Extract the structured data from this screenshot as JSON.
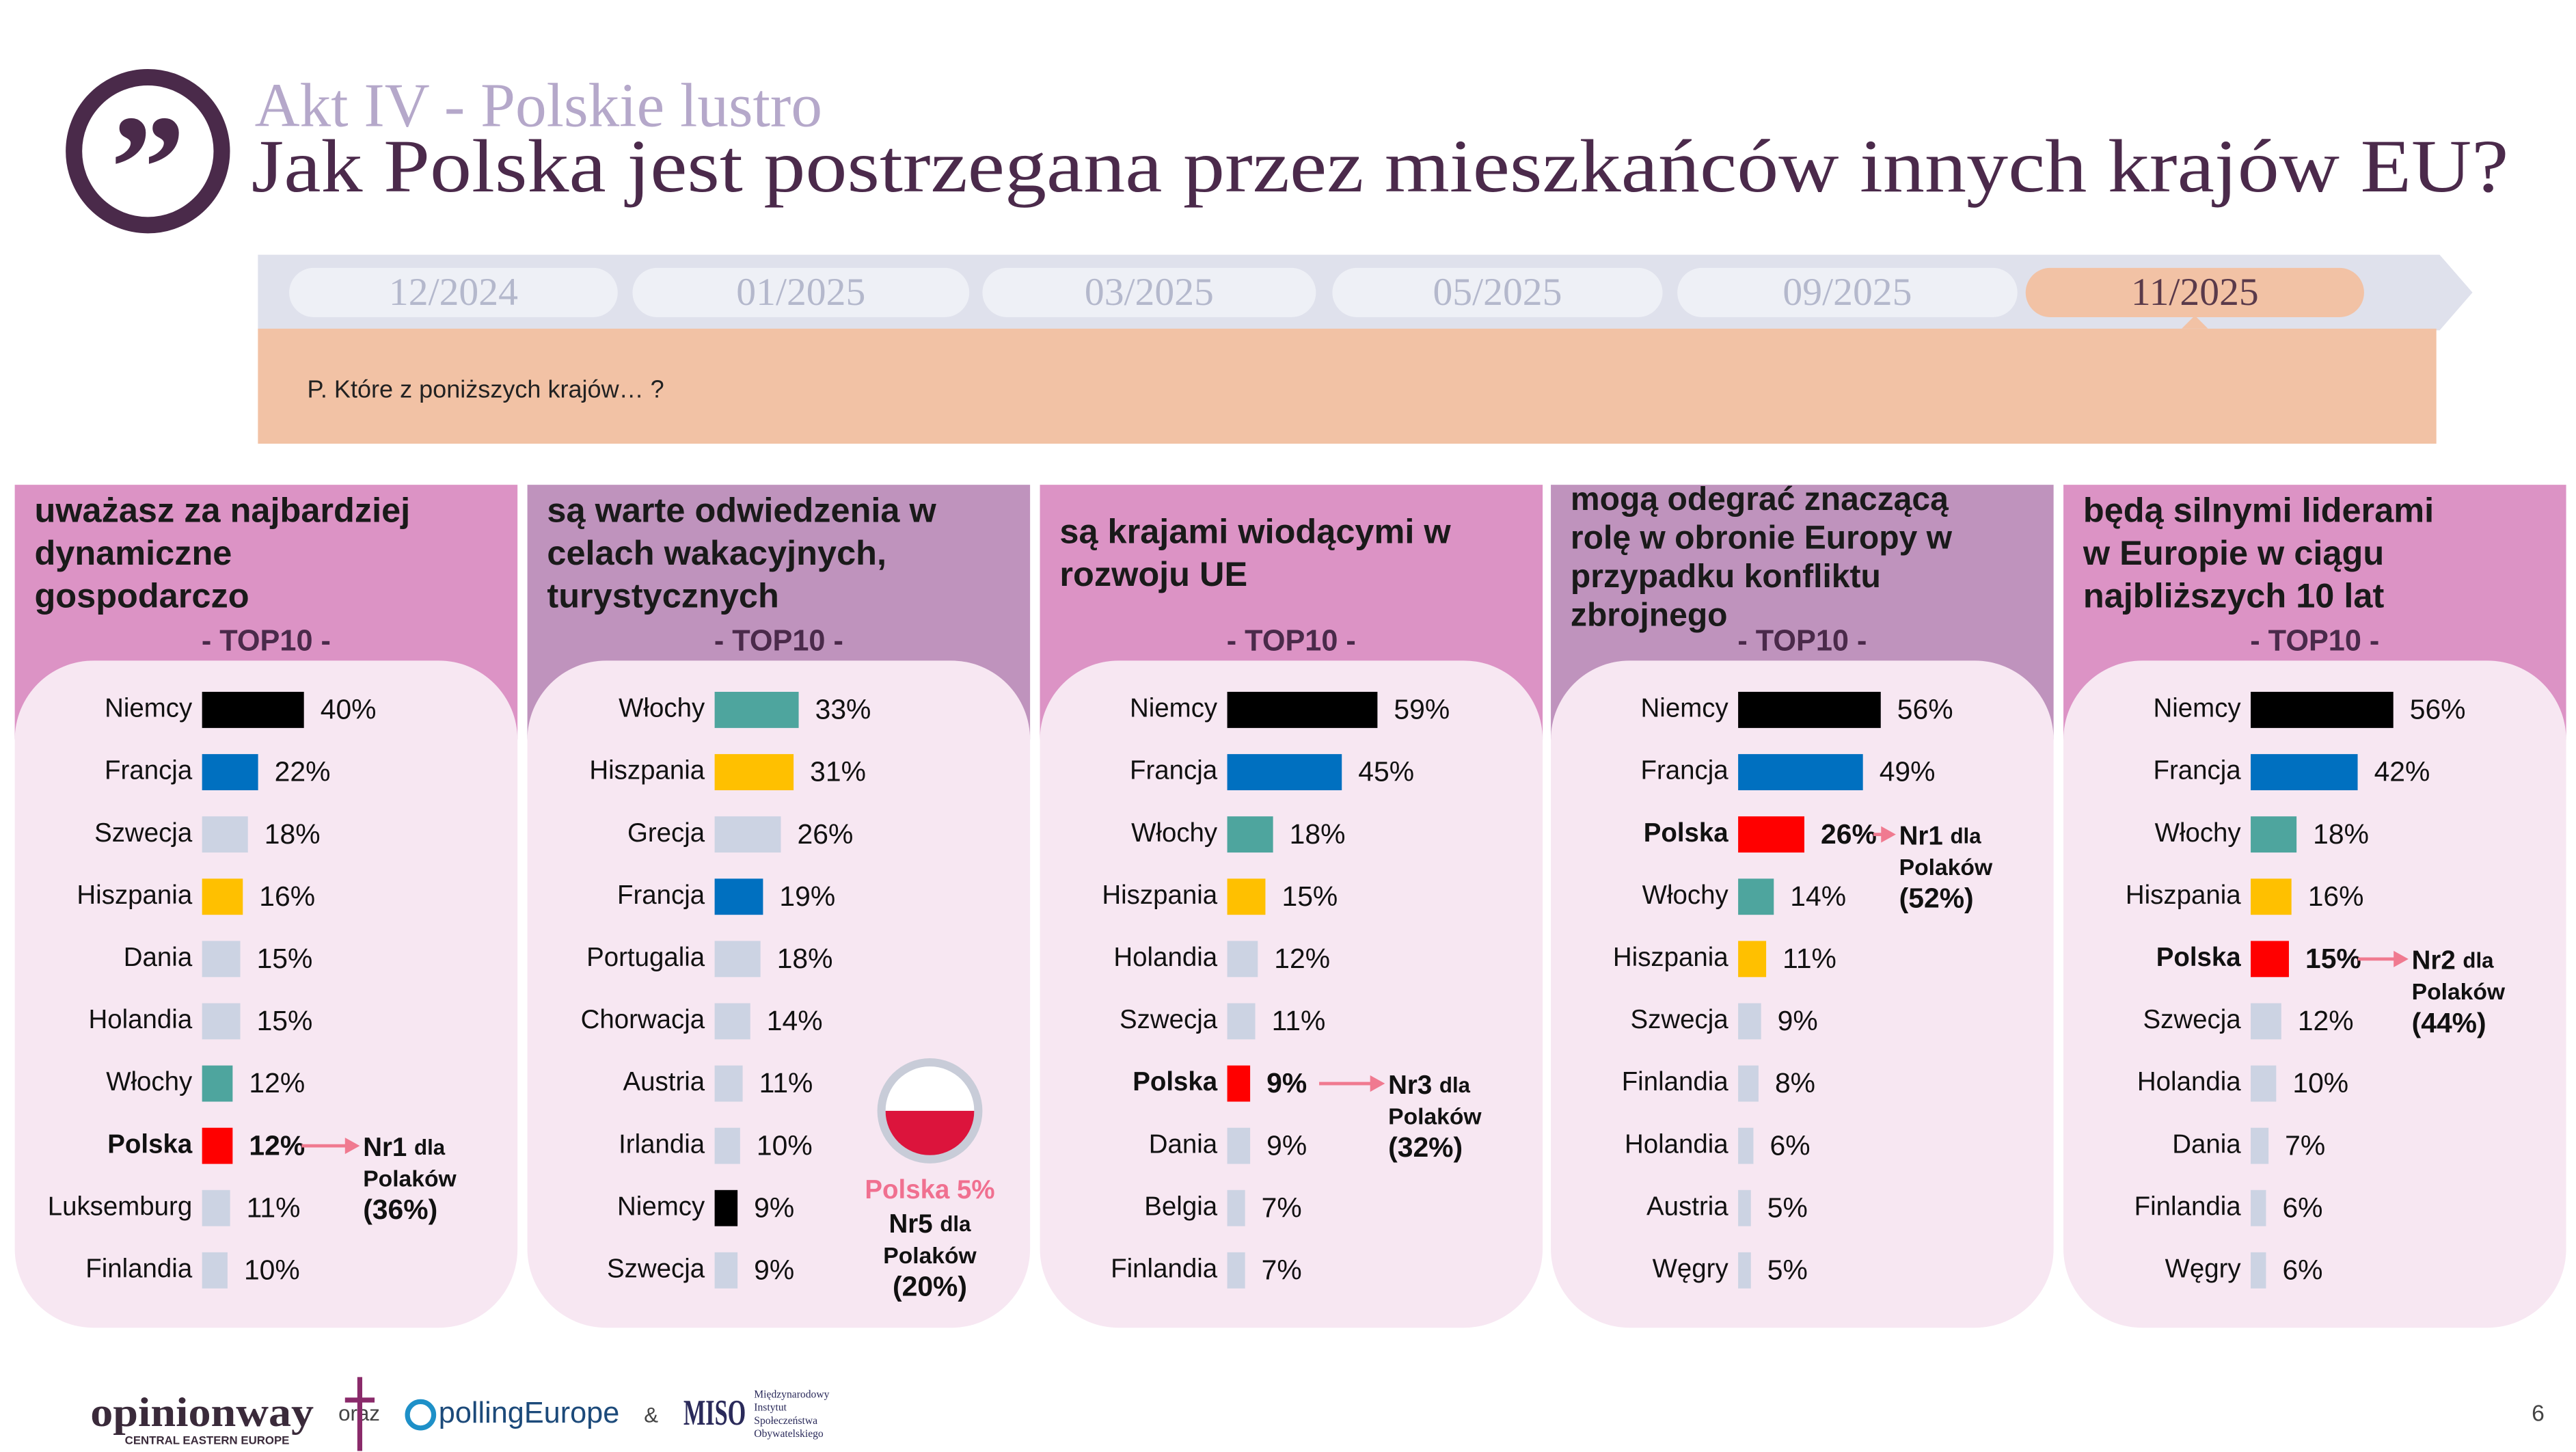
{
  "header": {
    "kicker": "Akt IV - Polskie lustro",
    "title": "Jak Polska jest postrzegana przez mieszkańców innych krajów EU?"
  },
  "timeline": {
    "steps": [
      "12/2024",
      "01/2025",
      "03/2025",
      "05/2025",
      "09/2025",
      "11/2025"
    ],
    "active": "11/2025",
    "question": "P. Które z poniższych krajów… ?"
  },
  "chart_data": [
    {
      "type": "bar",
      "orientation": "horizontal",
      "title": [
        "uważasz za najbardziej",
        "dynamiczne",
        "gospodarczo"
      ],
      "subtitle": "- TOP10 -",
      "header_color": "#dc93c5",
      "categories": [
        "Niemcy",
        "Francja",
        "Szwecja",
        "Hiszpania",
        "Dania",
        "Holandia",
        "Włochy",
        "Polska",
        "Luksemburg",
        "Finlandia"
      ],
      "values": [
        40,
        22,
        18,
        16,
        15,
        15,
        12,
        12,
        11,
        10
      ],
      "value_labels": [
        "40%",
        "22%",
        "18%",
        "16%",
        "15%",
        "15%",
        "12%",
        "12%",
        "11%",
        "10%"
      ],
      "colors": [
        "#000000",
        "#0070c0",
        "#ccd3e3",
        "#ffc000",
        "#ccd3e3",
        "#ccd3e3",
        "#4ea59e",
        "#ff0000",
        "#ccd3e3",
        "#ccd3e3"
      ],
      "annotation": [
        "Nr1",
        "dla",
        "Polaków",
        "(36%)"
      ]
    },
    {
      "type": "bar",
      "orientation": "horizontal",
      "title": [
        "są warte odwiedzenia w",
        "celach wakacyjnych,",
        "turystycznych"
      ],
      "subtitle": "- TOP10 -",
      "header_color": "#bf93bd",
      "categories": [
        "Włochy",
        "Hiszpania",
        "Grecja",
        "Francja",
        "Portugalia",
        "Chorwacja",
        "Austria",
        "Irlandia",
        "Niemcy",
        "Szwecja"
      ],
      "values": [
        33,
        31,
        26,
        19,
        18,
        14,
        11,
        10,
        9,
        9
      ],
      "value_labels": [
        "33%",
        "31%",
        "26%",
        "19%",
        "18%",
        "14%",
        "11%",
        "10%",
        "9%",
        "9%"
      ],
      "colors": [
        "#4ea59e",
        "#ffc000",
        "#ccd3e3",
        "#0070c0",
        "#ccd3e3",
        "#ccd3e3",
        "#ccd3e3",
        "#ccd3e3",
        "#000000",
        "#ccd3e3"
      ],
      "callout": "Polska 5%",
      "annotation": [
        "Nr5",
        "dla",
        "Polaków",
        "(20%)"
      ]
    },
    {
      "type": "bar",
      "orientation": "horizontal",
      "title": [
        "są krajami wiodącymi w",
        "rozwoju UE"
      ],
      "subtitle": "- TOP10 -",
      "header_color": "#dc93c5",
      "categories": [
        "Niemcy",
        "Francja",
        "Włochy",
        "Hiszpania",
        "Holandia",
        "Szwecja",
        "Polska",
        "Dania",
        "Belgia",
        "Finlandia"
      ],
      "values": [
        59,
        45,
        18,
        15,
        12,
        11,
        9,
        9,
        7,
        7
      ],
      "value_labels": [
        "59%",
        "45%",
        "18%",
        "15%",
        "12%",
        "11%",
        "9%",
        "9%",
        "7%",
        "7%"
      ],
      "colors": [
        "#000000",
        "#0070c0",
        "#4ea59e",
        "#ffc000",
        "#ccd3e3",
        "#ccd3e3",
        "#ff0000",
        "#ccd3e3",
        "#ccd3e3",
        "#ccd3e3"
      ],
      "annotation": [
        "Nr3",
        "dla",
        "Polaków",
        "(32%)"
      ]
    },
    {
      "type": "bar",
      "orientation": "horizontal",
      "title": [
        "mogą odegrać znaczącą",
        "rolę w obronie Europy w",
        "przypadku konfliktu",
        "zbrojnego"
      ],
      "subtitle": "- TOP10 -",
      "header_color": "#bf93bd",
      "categories": [
        "Niemcy",
        "Francja",
        "Polska",
        "Włochy",
        "Hiszpania",
        "Szwecja",
        "Finlandia",
        "Holandia",
        "Austria",
        "Węgry"
      ],
      "values": [
        56,
        49,
        26,
        14,
        11,
        9,
        8,
        6,
        5,
        5
      ],
      "value_labels": [
        "56%",
        "49%",
        "26%",
        "14%",
        "11%",
        "9%",
        "8%",
        "6%",
        "5%",
        "5%"
      ],
      "colors": [
        "#000000",
        "#0070c0",
        "#ff0000",
        "#4ea59e",
        "#ffc000",
        "#ccd3e3",
        "#ccd3e3",
        "#ccd3e3",
        "#ccd3e3",
        "#ccd3e3"
      ],
      "annotation": [
        "Nr1",
        "dla",
        "Polaków",
        "(52%)"
      ]
    },
    {
      "type": "bar",
      "orientation": "horizontal",
      "title": [
        "będą silnymi liderami",
        "w Europie w ciągu",
        "najbliższych 10 lat"
      ],
      "subtitle": "- TOP10 -",
      "header_color": "#dc93c5",
      "categories": [
        "Niemcy",
        "Francja",
        "Włochy",
        "Hiszpania",
        "Polska",
        "Szwecja",
        "Holandia",
        "Dania",
        "Finlandia",
        "Węgry"
      ],
      "values": [
        56,
        42,
        18,
        16,
        15,
        12,
        10,
        7,
        6,
        6
      ],
      "value_labels": [
        "56%",
        "42%",
        "18%",
        "16%",
        "15%",
        "12%",
        "10%",
        "7%",
        "6%",
        "6%"
      ],
      "colors": [
        "#000000",
        "#0070c0",
        "#4ea59e",
        "#ffc000",
        "#ff0000",
        "#ccd3e3",
        "#ccd3e3",
        "#ccd3e3",
        "#ccd3e3",
        "#ccd3e3"
      ],
      "annotation": [
        "Nr2",
        "dla",
        "Polaków",
        "(44%)"
      ]
    }
  ],
  "footer": {
    "opinionway": "opinionway",
    "opinionway_sub": "CENTRAL EASTERN EUROPE",
    "oraz": "oraz",
    "polling": "pollingEurope",
    "amp": "&",
    "miso": "MISO",
    "miso_lines": [
      "Międzynarodowy",
      "Instytut",
      "Społeczeństwa",
      "Obywatelskiego"
    ],
    "page": "6"
  }
}
